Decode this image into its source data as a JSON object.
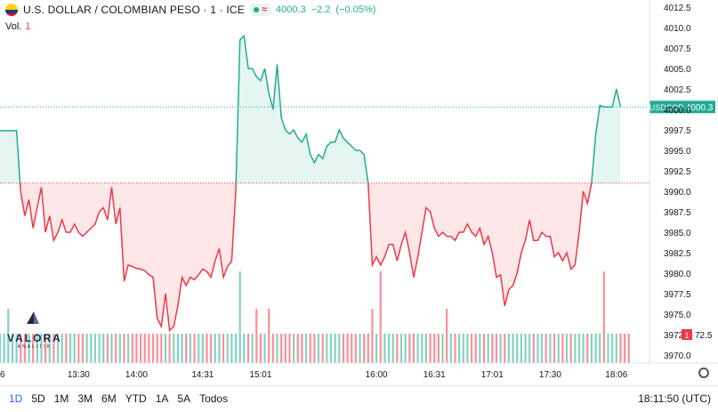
{
  "header": {
    "symbol_title": "U.S. DOLLAR / COLOMBIAN PESO · 1 · ICE",
    "market_badge": "≈",
    "last": "4000.3",
    "change": "−2.2",
    "change_pct": "(−0.05%)"
  },
  "volume": {
    "label": "Vol.",
    "value": "1"
  },
  "logo": {
    "name": "VALORA",
    "sub": "ANALITIK"
  },
  "ranges": [
    "1D",
    "5D",
    "1M",
    "3M",
    "6M",
    "YTD",
    "1A",
    "5A",
    "Todos"
  ],
  "active_range": "1D",
  "clock": "18:11:50 (UTC)",
  "colors": {
    "up": "#22ab94",
    "down": "#f23645",
    "ref": "#f23645"
  },
  "chart_data": {
    "type": "line",
    "baseline": 3991.0,
    "last_price": 4000.3,
    "last_label": "USDCOP",
    "volume_scale_label": "72.5",
    "ylim": [
      3968.0,
      4013.0
    ],
    "y_ticks": [
      4012.5,
      4010.0,
      4007.5,
      4005.0,
      4002.5,
      4000.0,
      3997.5,
      3995.0,
      3992.5,
      3990.0,
      3987.5,
      3985.0,
      3982.5,
      3980.0,
      3977.5,
      3975.0,
      3972.5,
      3970.0
    ],
    "x_ticks": [
      {
        "label": "6",
        "i": 0
      },
      {
        "label": "13:30",
        "i": 19
      },
      {
        "label": "14:00",
        "i": 33
      },
      {
        "label": "14:31",
        "i": 49
      },
      {
        "label": "15:01",
        "i": 63
      },
      {
        "label": "16:00",
        "i": 91
      },
      {
        "label": "16:31",
        "i": 105
      },
      {
        "label": "17:01",
        "i": 119
      },
      {
        "label": "17:30",
        "i": 133
      },
      {
        "label": "18:06",
        "i": 149
      }
    ],
    "n_slots": 158,
    "series": [
      {
        "values": [
          3997.4,
          3997.4,
          3997.4,
          3997.4,
          3997.4,
          3990.0,
          3987.0,
          3989.0,
          3985.5,
          3988.0,
          3990.5,
          3985.0,
          3987.0,
          3984.0,
          3985.0,
          3986.5,
          3985.0,
          3985.0,
          3986.0,
          3985.0,
          3984.5,
          3985.0,
          3985.5,
          3986.0,
          3987.5,
          3988.0,
          3986.5,
          3990.5,
          3986.0,
          3988.0,
          3979.0,
          3981.0,
          3980.8,
          3980.6,
          3980.5,
          3980.3,
          3979.8,
          3979.5,
          3974.5,
          3973.5,
          3977.5,
          3973.0,
          3973.5,
          3976.0,
          3979.5,
          3978.5,
          3979.5,
          3979.2,
          3979.8,
          3980.5,
          3980.2,
          3979.5,
          3981.5,
          3983.0,
          3979.5,
          3980.8,
          3981.5,
          3990.0,
          4008.5,
          4009.0,
          4005.0,
          4005.0,
          4004.0,
          4003.5,
          4005.0,
          4002.0,
          4000.0,
          4005.5,
          3999.0,
          3997.5,
          3997.0,
          3997.5,
          3996.5,
          3996.0,
          3997.0,
          3994.5,
          3993.5,
          3994.5,
          3994.0,
          3995.5,
          3996.0,
          3996.0,
          3997.5,
          3996.5,
          3996.0,
          3995.5,
          3995.0,
          3995.0,
          3994.5,
          3991.0,
          3981.0,
          3982.0,
          3981.0,
          3982.0,
          3983.5,
          3983.5,
          3981.5,
          3983.5,
          3985.0,
          3982.5,
          3979.5,
          3982.0,
          3985.0,
          3988.0,
          3987.5,
          3985.5,
          3984.5,
          3985.0,
          3984.5,
          3984.5,
          3984.0,
          3985.0,
          3985.0,
          3986.0,
          3985.0,
          3984.5,
          3985.5,
          3983.5,
          3984.5,
          3982.5,
          3979.5,
          3979.8,
          3976.0,
          3978.0,
          3978.5,
          3980.0,
          3982.5,
          3984.0,
          3986.5,
          3984.0,
          3984.0,
          3985.0,
          3984.5,
          3984.5,
          3982.0,
          3982.5,
          3981.5,
          3982.5,
          3980.5,
          3981.0,
          3985.0,
          3990.0,
          3988.5,
          3991.0,
          3997.0,
          4000.5,
          4000.3,
          4000.3,
          4000.3,
          4002.5,
          4000.3
        ]
      }
    ],
    "volume": [
      1,
      1,
      3,
      1,
      1,
      1,
      1,
      1,
      1,
      1,
      1,
      1,
      1,
      1,
      1,
      1,
      1,
      1,
      1,
      1,
      1,
      1,
      1,
      1,
      1,
      1,
      1,
      1,
      1,
      1,
      1,
      1,
      1,
      1,
      1,
      1,
      1,
      1,
      1,
      1,
      1,
      1,
      1,
      1,
      1,
      1,
      1,
      1,
      1,
      1,
      1,
      1,
      1,
      1,
      1,
      1,
      1,
      1,
      6,
      1,
      1,
      1,
      3,
      1,
      1,
      3,
      1,
      1,
      1,
      1,
      1,
      1,
      1,
      1,
      1,
      1,
      1,
      1,
      1,
      1,
      1,
      1,
      1,
      1,
      1,
      1,
      1,
      1,
      1,
      1,
      3,
      1,
      6,
      1,
      1,
      1,
      1,
      1,
      1,
      1,
      1,
      1,
      1,
      1,
      1,
      1,
      1,
      1,
      3,
      1,
      1,
      1,
      1,
      1,
      1,
      1,
      1,
      1,
      1,
      1,
      1,
      1,
      1,
      1,
      1,
      1,
      1,
      1,
      1,
      1,
      1,
      1,
      1,
      1,
      1,
      1,
      1,
      1,
      1,
      1,
      1,
      1,
      1,
      1,
      1,
      1,
      6,
      1,
      1,
      1,
      1,
      1,
      1
    ]
  }
}
